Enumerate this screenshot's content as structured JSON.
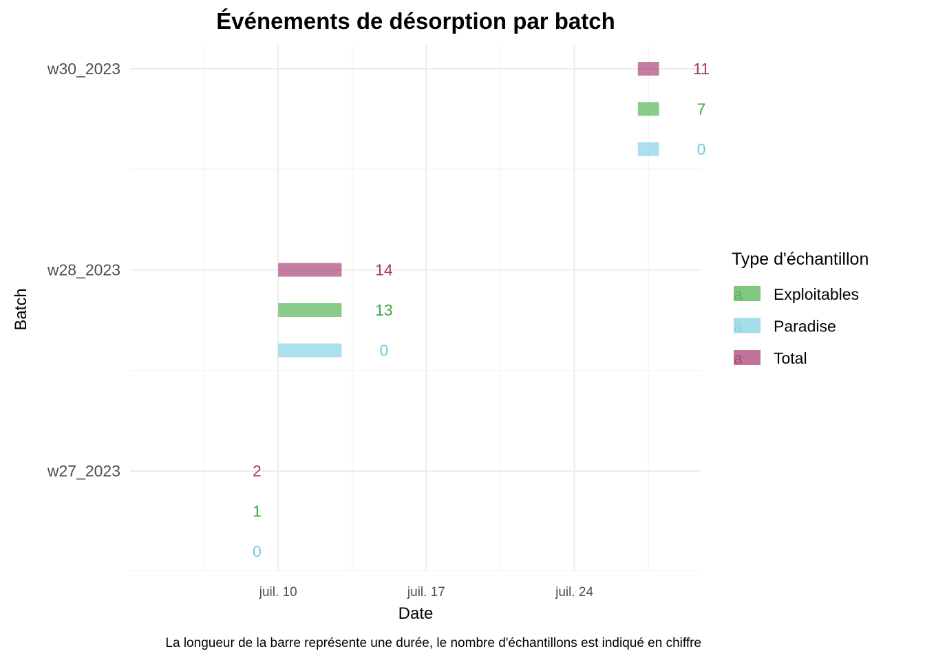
{
  "chart_data": {
    "type": "bar",
    "orientation": "horizontal-segments",
    "title": "Événements de désorption par batch",
    "xlabel": "Date",
    "ylabel": "Batch",
    "caption": "La longueur de la barre représente une durée, le nombre d'échantillons est indiqué en chiffre",
    "categories": [
      "w27_2023",
      "w28_2023",
      "w30_2023"
    ],
    "x_ticks": [
      {
        "label": "juil. 10",
        "date": "2023-07-10"
      },
      {
        "label": "juil. 17",
        "date": "2023-07-17"
      },
      {
        "label": "juil. 24",
        "date": "2023-07-24"
      }
    ],
    "xlim": [
      "2023-07-03",
      "2023-07-30"
    ],
    "grid": true,
    "legend": {
      "title": "Type d'échantillon",
      "placement": "right",
      "key_glyph": "a",
      "items": [
        {
          "name": "Exploitables",
          "color": "#4daf4a"
        },
        {
          "name": "Paradise",
          "color": "#7fcfe3"
        },
        {
          "name": "Total",
          "color": "#a6376e"
        }
      ]
    },
    "series": [
      {
        "name": "Total",
        "color": "#a6376e",
        "label_color": "#a6376e",
        "segments": [
          {
            "batch": "w27_2023",
            "start": "2023-07-07",
            "end": "2023-07-07",
            "count": 2
          },
          {
            "batch": "w28_2023",
            "start": "2023-07-10",
            "end": "2023-07-13",
            "count": 14
          },
          {
            "batch": "w30_2023",
            "start": "2023-07-27",
            "end": "2023-07-28",
            "count": 11
          }
        ]
      },
      {
        "name": "Exploitables",
        "color": "#4daf4a",
        "label_color": "#3fa63f",
        "segments": [
          {
            "batch": "w27_2023",
            "start": "2023-07-07",
            "end": "2023-07-07",
            "count": 1
          },
          {
            "batch": "w28_2023",
            "start": "2023-07-10",
            "end": "2023-07-13",
            "count": 13
          },
          {
            "batch": "w30_2023",
            "start": "2023-07-27",
            "end": "2023-07-28",
            "count": 7
          }
        ]
      },
      {
        "name": "Paradise",
        "color": "#7fcfe3",
        "label_color": "#6ec9df",
        "segments": [
          {
            "batch": "w27_2023",
            "start": "2023-07-07",
            "end": "2023-07-07",
            "count": 0
          },
          {
            "batch": "w28_2023",
            "start": "2023-07-10",
            "end": "2023-07-13",
            "count": 0
          },
          {
            "batch": "w30_2023",
            "start": "2023-07-27",
            "end": "2023-07-28",
            "count": 0
          }
        ]
      }
    ]
  }
}
